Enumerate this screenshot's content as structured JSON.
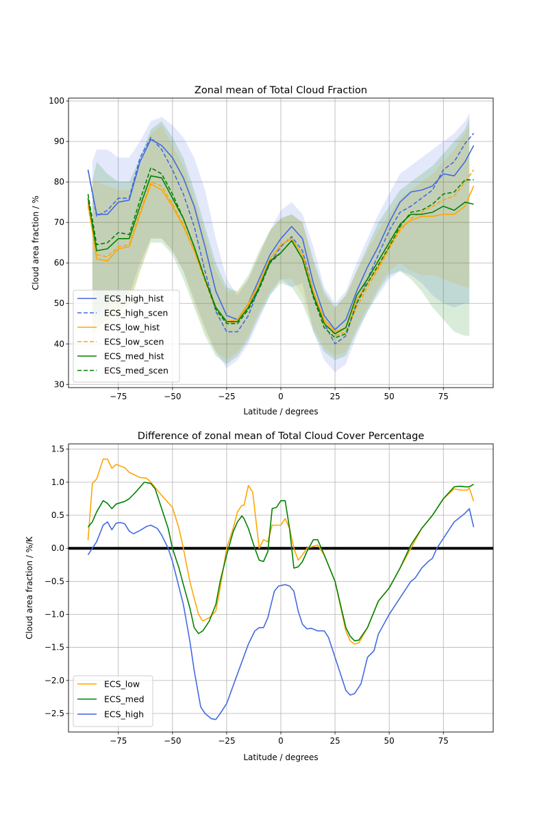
{
  "chart_data": [
    {
      "type": "line",
      "title": "Zonal mean of Total Cloud Fraction",
      "xlabel": "Latitude / degrees",
      "ylabel": "Cloud area fraction / %",
      "xlim": [
        -98,
        98
      ],
      "ylim": [
        29.2,
        100.7
      ],
      "xticks": [
        -75,
        -50,
        -25,
        0,
        25,
        50,
        75
      ],
      "yticks": [
        30,
        40,
        50,
        60,
        70,
        80,
        90,
        100
      ],
      "grid": true,
      "legend_position": "lower-left",
      "x": [
        -89,
        -85,
        -80,
        -75,
        -70,
        -65,
        -60,
        -55,
        -50,
        -45,
        -40,
        -35,
        -30,
        -25,
        -20,
        -15,
        -10,
        -5,
        0,
        5,
        10,
        15,
        20,
        25,
        30,
        35,
        40,
        45,
        50,
        55,
        60,
        65,
        70,
        75,
        80,
        85,
        89
      ],
      "series": [
        {
          "name": "ECS_high_hist",
          "color": "#4169e1",
          "dash": false,
          "values": [
            83,
            72,
            72,
            75,
            75.5,
            85,
            90.5,
            89,
            86,
            81,
            74,
            64,
            53,
            47,
            46,
            50,
            56,
            62,
            66,
            69,
            66,
            55,
            47,
            43.5,
            46,
            53,
            59,
            64,
            70,
            75,
            77.5,
            78,
            79,
            82,
            81.5,
            85,
            89
          ]
        },
        {
          "name": "ECS_high_scen",
          "color": "#4169e1",
          "dash": true,
          "values": [
            83,
            71.5,
            73,
            76,
            76,
            86,
            91,
            88,
            83,
            77,
            69,
            58,
            48,
            43,
            43,
            47,
            54,
            60,
            64,
            66.5,
            63,
            53,
            45,
            40,
            42,
            50,
            56,
            62,
            68,
            72.5,
            74,
            76,
            78,
            83,
            85,
            89.5,
            92
          ]
        },
        {
          "name": "ECS_low_hist",
          "color": "#ffa500",
          "dash": false,
          "values": [
            75,
            61,
            60.5,
            63.5,
            64,
            72,
            79.5,
            78,
            74,
            69,
            63,
            56,
            49,
            45.5,
            46,
            50,
            55,
            61,
            64.5,
            66,
            62,
            53,
            46,
            43,
            44,
            51,
            55,
            59,
            64,
            68.5,
            70.5,
            71.5,
            71.5,
            72,
            72,
            74,
            79
          ]
        },
        {
          "name": "ECS_low_scen",
          "color": "#ffa500",
          "dash": true,
          "values": [
            74,
            62,
            61.5,
            64,
            64.5,
            72.5,
            80,
            79,
            74.5,
            69.5,
            63,
            55.5,
            48.5,
            45,
            45.5,
            49.5,
            55,
            61,
            64.5,
            66,
            62,
            52.5,
            45.5,
            42,
            43,
            49,
            54,
            58.5,
            63.5,
            68,
            71,
            72.5,
            74,
            75.5,
            76.5,
            80,
            83
          ]
        },
        {
          "name": "ECS_med_hist",
          "color": "#008000",
          "dash": false,
          "values": [
            76,
            63,
            63.5,
            66,
            66,
            74,
            81.5,
            81,
            76,
            71,
            64,
            56,
            49,
            45.5,
            45.5,
            49,
            54,
            60.5,
            62.5,
            65.5,
            61,
            52,
            45,
            42.5,
            44,
            52,
            56,
            60.5,
            65,
            69.5,
            72,
            72,
            72.5,
            74,
            73,
            75,
            74.5
          ]
        },
        {
          "name": "ECS_med_scen",
          "color": "#008000",
          "dash": true,
          "values": [
            77,
            64.5,
            65,
            67.5,
            67,
            75.5,
            83.5,
            82,
            77,
            71,
            64,
            56,
            48.5,
            45,
            45,
            48.5,
            53.5,
            60,
            62.5,
            65.5,
            61,
            51.5,
            44,
            41.5,
            42.5,
            50,
            55,
            59.5,
            64,
            69,
            72.5,
            73,
            74.5,
            77,
            77.5,
            80.5,
            80.5
          ]
        }
      ],
      "bands": [
        {
          "color": "#4169e1",
          "x": [
            -87,
            -85,
            -80,
            -75,
            -70,
            -65,
            -60,
            -55,
            -50,
            -45,
            -40,
            -35,
            -30,
            -25,
            -20,
            -15,
            -10,
            -5,
            0,
            5,
            10,
            15,
            20,
            25,
            30,
            35,
            40,
            45,
            50,
            55,
            60,
            65,
            70,
            75,
            80,
            85,
            87
          ],
          "upper": [
            85,
            88,
            88,
            86,
            86,
            90,
            95,
            96,
            94,
            91,
            86,
            78,
            66,
            56,
            52,
            56,
            62,
            68,
            73,
            75,
            72,
            64,
            54,
            50,
            53,
            60,
            66,
            72,
            77,
            82,
            84,
            86,
            88,
            90,
            92,
            95,
            97
          ],
          "lower": [
            47,
            47,
            49,
            51,
            52,
            60,
            66,
            66,
            63,
            58,
            51,
            44,
            38,
            34,
            36,
            40,
            46,
            52,
            56,
            54,
            55,
            43,
            36,
            33,
            35,
            42,
            48,
            52,
            56,
            58,
            57,
            55,
            52,
            50,
            49,
            50,
            50
          ]
        },
        {
          "color": "#ffa500",
          "x": [
            -87,
            -85,
            -80,
            -75,
            -70,
            -65,
            -60,
            -55,
            -50,
            -45,
            -40,
            -35,
            -30,
            -25,
            -20,
            -15,
            -10,
            -5,
            0,
            5,
            10,
            15,
            20,
            25,
            30,
            35,
            40,
            45,
            50,
            55,
            60,
            65,
            70,
            75,
            80,
            85,
            87
          ],
          "upper": [
            80,
            80,
            79,
            78,
            78,
            84,
            92,
            94,
            89,
            84,
            76,
            67,
            58,
            53,
            53,
            56,
            62,
            68,
            71,
            72,
            70,
            60,
            52,
            49,
            52,
            58,
            63,
            68,
            72,
            76,
            78,
            80,
            82,
            85,
            88,
            92,
            94
          ],
          "lower": [
            40,
            42,
            44,
            46,
            48,
            58,
            66,
            66,
            63,
            58,
            50,
            43,
            38,
            36,
            38,
            42,
            48,
            53,
            56,
            56,
            52,
            44,
            39,
            37,
            38,
            44,
            49,
            54,
            58,
            60,
            58,
            57,
            57,
            56,
            55,
            54,
            54
          ]
        },
        {
          "color": "#008000",
          "x": [
            -87,
            -85,
            -80,
            -75,
            -70,
            -65,
            -60,
            -55,
            -50,
            -45,
            -40,
            -35,
            -30,
            -25,
            -20,
            -15,
            -10,
            -5,
            0,
            5,
            10,
            15,
            20,
            25,
            30,
            35,
            40,
            45,
            50,
            55,
            60,
            65,
            70,
            75,
            80,
            85,
            87
          ],
          "upper": [
            80,
            85,
            82,
            80,
            80,
            86,
            93,
            95,
            91,
            86,
            78,
            69,
            60,
            54,
            53,
            57,
            63,
            68,
            71,
            72,
            70,
            61,
            53,
            49,
            52,
            58,
            64,
            70,
            74,
            78,
            80,
            82,
            84,
            87,
            90,
            93,
            96
          ],
          "lower": [
            42,
            44,
            46,
            48,
            50,
            58,
            65,
            65,
            62,
            56,
            49,
            42,
            37,
            35,
            37,
            41,
            47,
            52,
            55,
            54,
            50,
            43,
            38,
            36,
            37,
            43,
            48,
            53,
            57,
            58,
            56,
            53,
            49,
            46,
            43,
            42,
            42
          ]
        }
      ]
    },
    {
      "type": "line",
      "title": "Difference of zonal mean of Total Cloud Cover Percentage",
      "xlabel": "Latitude / degrees",
      "ylabel": "Cloud area fraction / %/K",
      "xlim": [
        -98,
        98
      ],
      "ylim": [
        -2.78,
        1.58
      ],
      "xticks": [
        -75,
        -50,
        -25,
        0,
        25,
        50,
        75
      ],
      "yticks": [
        -2.5,
        -2.0,
        -1.5,
        -1.0,
        -0.5,
        0.0,
        0.5,
        1.0,
        1.5
      ],
      "grid": true,
      "zero_line": true,
      "legend_position": "lower-left",
      "series": [
        {
          "name": "ECS_low",
          "color": "#ffa500",
          "x": [
            -89,
            -87,
            -85,
            -82,
            -80,
            -78,
            -76,
            -72,
            -70,
            -65,
            -62,
            -60,
            -55,
            -50,
            -47,
            -45,
            -42,
            -38,
            -36,
            -33,
            -30,
            -28,
            -25,
            -22,
            -20,
            -18,
            -17,
            -15,
            -13,
            -10,
            -8,
            -6,
            -4,
            -2,
            0,
            2,
            4,
            6,
            8,
            10,
            12,
            15,
            17,
            20,
            25,
            30,
            32,
            34,
            36,
            40,
            45,
            50,
            55,
            60,
            65,
            70,
            75,
            80,
            83,
            86,
            87,
            89
          ],
          "values": [
            0.12,
            0.98,
            1.05,
            1.35,
            1.35,
            1.21,
            1.27,
            1.22,
            1.15,
            1.07,
            1.06,
            1.0,
            0.8,
            0.62,
            0.3,
            0.0,
            -0.5,
            -1.0,
            -1.1,
            -1.05,
            -0.95,
            -0.6,
            0.0,
            0.3,
            0.55,
            0.65,
            0.65,
            0.95,
            0.85,
            0.0,
            0.13,
            0.1,
            0.35,
            0.35,
            0.35,
            0.45,
            0.3,
            0.0,
            -0.18,
            -0.1,
            0.0,
            0.03,
            0.05,
            -0.1,
            -0.5,
            -1.25,
            -1.4,
            -1.45,
            -1.43,
            -1.2,
            -0.8,
            -0.6,
            -0.3,
            0.0,
            0.3,
            0.5,
            0.75,
            0.9,
            0.88,
            0.88,
            0.91,
            0.71
          ]
        },
        {
          "name": "ECS_med",
          "color": "#008000",
          "x": [
            -89,
            -87,
            -85,
            -82,
            -80,
            -78,
            -76,
            -72,
            -70,
            -67,
            -63,
            -60,
            -58,
            -55,
            -52,
            -50,
            -47,
            -45,
            -42,
            -40,
            -38,
            -36,
            -33,
            -30,
            -28,
            -25,
            -22,
            -20,
            -18,
            -17,
            -15,
            -12,
            -10,
            -8,
            -6,
            -4,
            -2,
            0,
            2,
            4,
            6,
            8,
            10,
            12,
            15,
            17,
            20,
            25,
            30,
            32,
            34,
            36,
            40,
            45,
            50,
            55,
            60,
            65,
            70,
            75,
            80,
            83,
            85,
            87,
            89
          ],
          "values": [
            0.32,
            0.4,
            0.55,
            0.72,
            0.68,
            0.6,
            0.67,
            0.71,
            0.75,
            0.85,
            1.0,
            0.98,
            0.9,
            0.6,
            0.3,
            0.0,
            -0.3,
            -0.55,
            -0.9,
            -1.2,
            -1.29,
            -1.25,
            -1.1,
            -0.85,
            -0.5,
            -0.1,
            0.25,
            0.4,
            0.49,
            0.45,
            0.3,
            0.0,
            -0.18,
            -0.2,
            -0.05,
            0.6,
            0.62,
            0.72,
            0.72,
            0.3,
            -0.3,
            -0.28,
            -0.2,
            -0.05,
            0.13,
            0.13,
            -0.1,
            -0.5,
            -1.2,
            -1.33,
            -1.4,
            -1.39,
            -1.2,
            -0.8,
            -0.6,
            -0.3,
            0.05,
            0.3,
            0.5,
            0.75,
            0.93,
            0.94,
            0.93,
            0.93,
            0.97
          ]
        },
        {
          "name": "ECS_high",
          "color": "#4169e1",
          "x": [
            -89,
            -87,
            -85,
            -82,
            -80,
            -78,
            -76,
            -74,
            -72,
            -70,
            -68,
            -65,
            -62,
            -60,
            -57,
            -55,
            -52,
            -50,
            -45,
            -42,
            -40,
            -37,
            -35,
            -32,
            -30,
            -28,
            -25,
            -20,
            -15,
            -12,
            -10,
            -8,
            -6,
            -3,
            -1,
            2,
            4,
            6,
            8,
            10,
            12,
            14,
            17,
            20,
            22,
            25,
            28,
            30,
            32,
            34,
            37,
            40,
            43,
            45,
            50,
            55,
            60,
            62,
            65,
            68,
            70,
            72,
            75,
            80,
            85,
            87,
            89
          ],
          "values": [
            -0.1,
            0.0,
            0.1,
            0.35,
            0.4,
            0.28,
            0.38,
            0.39,
            0.37,
            0.26,
            0.22,
            0.27,
            0.33,
            0.35,
            0.3,
            0.2,
            0.0,
            -0.2,
            -0.85,
            -1.4,
            -1.85,
            -2.4,
            -2.5,
            -2.58,
            -2.59,
            -2.5,
            -2.35,
            -1.9,
            -1.45,
            -1.25,
            -1.2,
            -1.2,
            -1.05,
            -0.65,
            -0.57,
            -0.55,
            -0.57,
            -0.65,
            -0.95,
            -1.15,
            -1.22,
            -1.21,
            -1.25,
            -1.25,
            -1.35,
            -1.65,
            -1.95,
            -2.15,
            -2.22,
            -2.2,
            -2.05,
            -1.65,
            -1.55,
            -1.3,
            -1.0,
            -0.75,
            -0.5,
            -0.45,
            -0.3,
            -0.2,
            -0.15,
            0.0,
            0.15,
            0.4,
            0.53,
            0.6,
            0.32
          ]
        }
      ]
    }
  ]
}
